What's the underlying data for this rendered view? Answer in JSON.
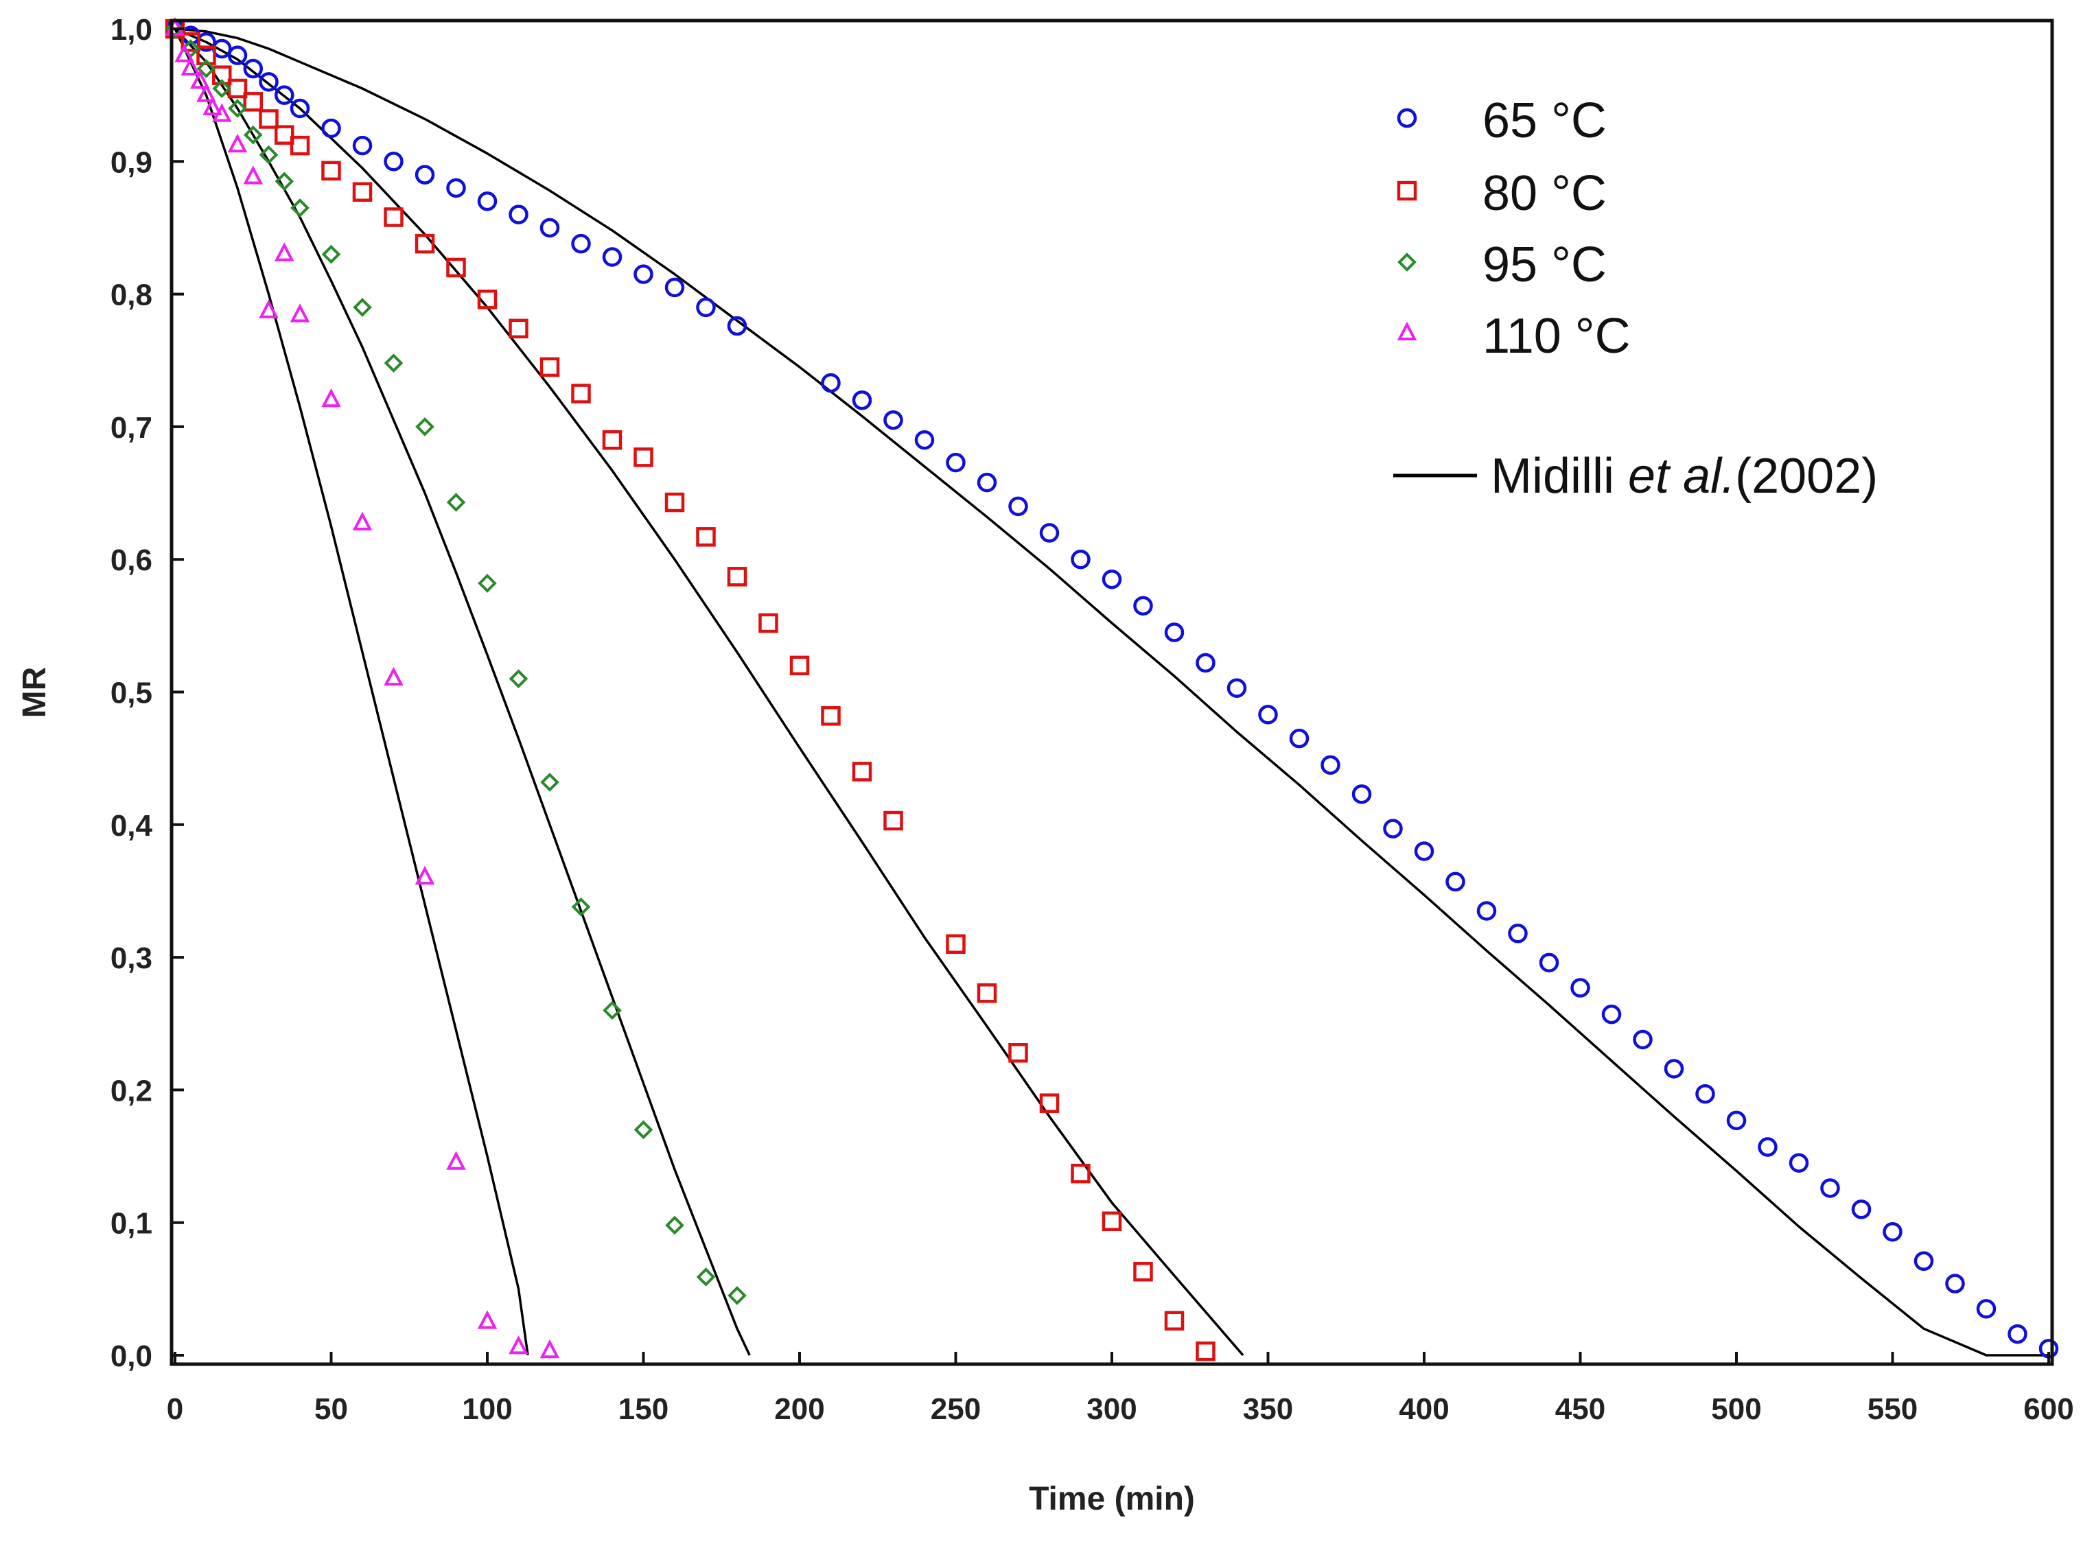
{
  "chart_data": {
    "type": "scatter",
    "title": "",
    "xlabel": "Time (min)",
    "ylabel": "MR",
    "xlim": [
      0,
      600
    ],
    "ylim": [
      0,
      1
    ],
    "x_ticks": [
      0,
      50,
      100,
      150,
      200,
      250,
      300,
      350,
      400,
      450,
      500,
      550,
      600
    ],
    "x_tick_labels": [
      "0",
      "50",
      "100",
      "150",
      "200",
      "250",
      "300",
      "350",
      "400",
      "450",
      "500",
      "550",
      "600"
    ],
    "y_ticks": [
      0,
      0.1,
      0.2,
      0.3,
      0.4,
      0.5,
      0.6,
      0.7,
      0.8,
      0.9,
      1.0
    ],
    "y_tick_labels": [
      "0,0",
      "0,1",
      "0,2",
      "0,3",
      "0,4",
      "0,5",
      "0,6",
      "0,7",
      "0,8",
      "0,9",
      "1,0"
    ],
    "grid": false,
    "legend_position": "top-right",
    "series": [
      {
        "name": "65 °C",
        "marker": "circle",
        "color": "#1010dd",
        "x": [
          0,
          5,
          10,
          15,
          20,
          25,
          30,
          35,
          40,
          50,
          60,
          70,
          80,
          90,
          100,
          110,
          120,
          130,
          140,
          150,
          160,
          170,
          180,
          210,
          220,
          230,
          240,
          250,
          260,
          270,
          280,
          290,
          300,
          310,
          320,
          330,
          340,
          350,
          360,
          370,
          380,
          390,
          400,
          410,
          420,
          430,
          440,
          450,
          460,
          470,
          480,
          490,
          500,
          510,
          520,
          530,
          540,
          550,
          560,
          570,
          580,
          590,
          600
        ],
        "y": [
          1.0,
          0.995,
          0.99,
          0.985,
          0.98,
          0.97,
          0.96,
          0.95,
          0.94,
          0.925,
          0.912,
          0.9,
          0.89,
          0.88,
          0.87,
          0.86,
          0.85,
          0.838,
          0.828,
          0.815,
          0.805,
          0.79,
          0.776,
          0.733,
          0.72,
          0.705,
          0.69,
          0.673,
          0.658,
          0.64,
          0.62,
          0.6,
          0.585,
          0.565,
          0.545,
          0.522,
          0.503,
          0.483,
          0.465,
          0.445,
          0.423,
          0.397,
          0.38,
          0.357,
          0.335,
          0.318,
          0.296,
          0.277,
          0.257,
          0.238,
          0.216,
          0.197,
          0.177,
          0.157,
          0.145,
          0.126,
          0.11,
          0.093,
          0.071,
          0.054,
          0.035,
          0.016,
          0.005
        ]
      },
      {
        "name": "80 °C",
        "marker": "square",
        "color": "#dd1111",
        "x": [
          0,
          5,
          10,
          15,
          20,
          25,
          30,
          35,
          40,
          50,
          60,
          70,
          80,
          90,
          100,
          110,
          120,
          130,
          140,
          150,
          160,
          170,
          180,
          190,
          200,
          210,
          220,
          230,
          250,
          260,
          270,
          280,
          290,
          300,
          310,
          320,
          330
        ],
        "y": [
          1.0,
          0.99,
          0.98,
          0.965,
          0.955,
          0.945,
          0.932,
          0.92,
          0.912,
          0.893,
          0.877,
          0.858,
          0.838,
          0.82,
          0.796,
          0.774,
          0.745,
          0.725,
          0.69,
          0.677,
          0.643,
          0.617,
          0.587,
          0.552,
          0.52,
          0.482,
          0.44,
          0.403,
          0.31,
          0.273,
          0.228,
          0.19,
          0.137,
          0.101,
          0.063,
          0.026,
          0.003
        ]
      },
      {
        "name": "95 °C",
        "marker": "diamond",
        "color": "#2a8a2a",
        "x": [
          0,
          5,
          10,
          15,
          20,
          25,
          30,
          35,
          40,
          50,
          60,
          70,
          80,
          90,
          100,
          110,
          120,
          130,
          140,
          150,
          160,
          170,
          180
        ],
        "y": [
          1.0,
          0.985,
          0.97,
          0.955,
          0.94,
          0.92,
          0.905,
          0.885,
          0.865,
          0.83,
          0.79,
          0.748,
          0.7,
          0.643,
          0.582,
          0.51,
          0.432,
          0.338,
          0.26,
          0.17,
          0.098,
          0.059,
          0.045
        ]
      },
      {
        "name": "110 °C",
        "marker": "triangle",
        "color": "#ee22ee",
        "x": [
          0,
          3,
          5,
          8,
          10,
          12,
          15,
          20,
          25,
          30,
          35,
          40,
          50,
          60,
          70,
          80,
          90,
          100,
          110,
          120
        ],
        "y": [
          1.0,
          0.98,
          0.97,
          0.96,
          0.95,
          0.94,
          0.935,
          0.912,
          0.888,
          0.787,
          0.83,
          0.784,
          0.72,
          0.627,
          0.51,
          0.36,
          0.145,
          0.025,
          0.006,
          0.003
        ]
      }
    ],
    "model": {
      "name": "Midilli et al.(2002)",
      "name_prefix": "Midilli ",
      "name_italic": "et al.",
      "name_suffix": "(2002)",
      "color": "#000000",
      "curves": [
        {
          "x": [
            0,
            10,
            20,
            30,
            40,
            60,
            80,
            100,
            120,
            140,
            160,
            180,
            200,
            220,
            240,
            260,
            280,
            300,
            320,
            340,
            360,
            380,
            400,
            420,
            440,
            460,
            480,
            500,
            520,
            540,
            560,
            580,
            600
          ],
          "y": [
            1.0,
            0.998,
            0.993,
            0.985,
            0.975,
            0.955,
            0.932,
            0.906,
            0.878,
            0.848,
            0.815,
            0.78,
            0.745,
            0.708,
            0.67,
            0.632,
            0.593,
            0.552,
            0.512,
            0.47,
            0.43,
            0.388,
            0.347,
            0.305,
            0.264,
            0.222,
            0.18,
            0.139,
            0.097,
            0.058,
            0.02,
            0.0,
            0.0
          ]
        },
        {
          "x": [
            0,
            10,
            20,
            40,
            60,
            80,
            100,
            120,
            140,
            160,
            180,
            200,
            220,
            240,
            260,
            280,
            300,
            320,
            342
          ],
          "y": [
            1.0,
            0.99,
            0.977,
            0.94,
            0.895,
            0.845,
            0.79,
            0.73,
            0.667,
            0.6,
            0.53,
            0.458,
            0.387,
            0.315,
            0.248,
            0.18,
            0.115,
            0.06,
            0.0
          ]
        },
        {
          "x": [
            0,
            10,
            20,
            30,
            40,
            50,
            60,
            70,
            80,
            90,
            100,
            110,
            120,
            130,
            140,
            150,
            160,
            170,
            180,
            184
          ],
          "y": [
            1.0,
            0.975,
            0.94,
            0.9,
            0.858,
            0.81,
            0.76,
            0.705,
            0.65,
            0.59,
            0.528,
            0.465,
            0.4,
            0.335,
            0.27,
            0.205,
            0.14,
            0.08,
            0.02,
            0.0
          ]
        },
        {
          "x": [
            0,
            10,
            20,
            30,
            40,
            50,
            60,
            70,
            80,
            90,
            100,
            110,
            113
          ],
          "y": [
            1.0,
            0.95,
            0.88,
            0.8,
            0.715,
            0.625,
            0.53,
            0.435,
            0.34,
            0.245,
            0.15,
            0.05,
            0.0
          ]
        }
      ]
    }
  }
}
